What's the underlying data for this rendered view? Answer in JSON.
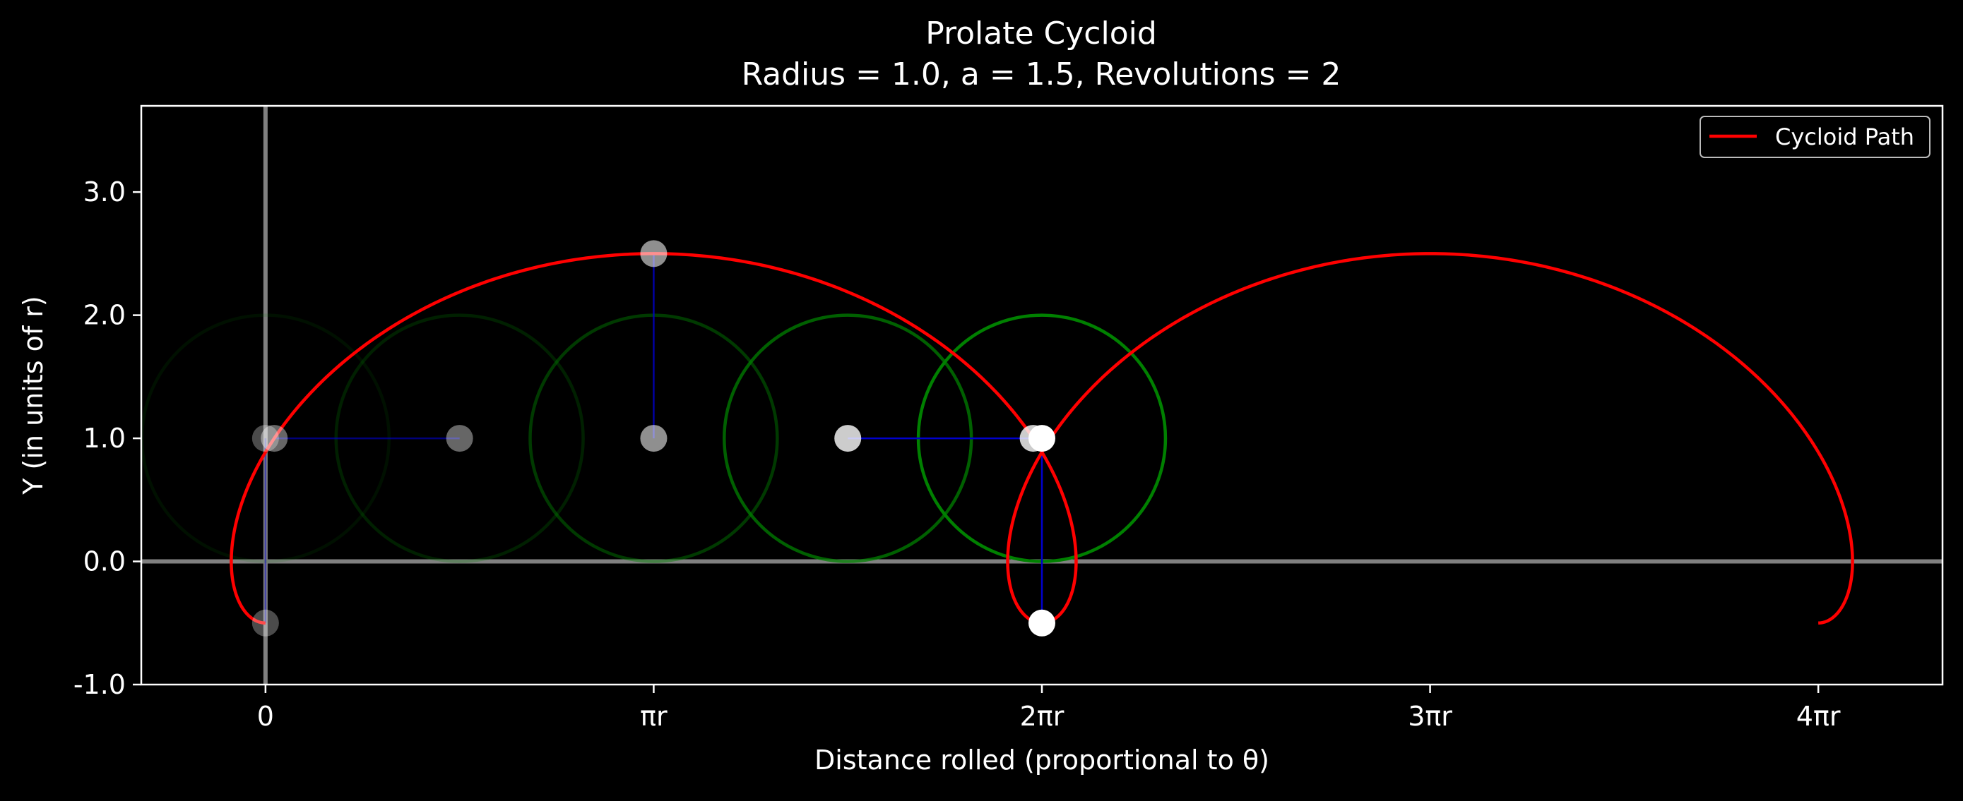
{
  "chart_data": {
    "type": "line",
    "title": "Prolate Cycloid",
    "subtitle": "Radius = 1.0, a = 1.5, Revolutions = 2",
    "xlabel": "Distance rolled (proportional to θ)",
    "ylabel": "Y (in units of r)",
    "radius": 1.0,
    "a": 1.5,
    "revolutions": 2,
    "xlim": [
      -0.32,
      4.32
    ],
    "ylim": [
      -1.0,
      3.7
    ],
    "x_unit": "πr",
    "x_ticks": [
      {
        "value": 0,
        "label": "0"
      },
      {
        "value": 1,
        "label": "πr"
      },
      {
        "value": 2,
        "label": "2πr"
      },
      {
        "value": 3,
        "label": "3πr"
      },
      {
        "value": 4,
        "label": "4πr"
      }
    ],
    "y_ticks": [
      {
        "value": -1.0,
        "label": "-1.0"
      },
      {
        "value": 0.0,
        "label": "0.0"
      },
      {
        "value": 1.0,
        "label": "1.0"
      },
      {
        "value": 2.0,
        "label": "2.0"
      },
      {
        "value": 3.0,
        "label": "3.0"
      }
    ],
    "legend": {
      "position": "upper right",
      "entries": [
        {
          "name": "Cycloid Path",
          "color": "#ff0000"
        }
      ]
    },
    "series": [
      {
        "name": "Cycloid Path",
        "color": "#ff0000",
        "theta_range_revolutions": [
          0,
          2
        ]
      }
    ],
    "rolling_circle_snapshots": [
      {
        "center_x": 0.0,
        "theta_fraction": 0.0,
        "opacity": 0.12
      },
      {
        "center_x": 0.5,
        "theta_fraction": 0.25,
        "opacity": 0.25
      },
      {
        "center_x": 1.0,
        "theta_fraction": 0.5,
        "opacity": 0.45
      },
      {
        "center_x": 1.5,
        "theta_fraction": 0.75,
        "opacity": 0.75
      },
      {
        "center_x": 2.0,
        "theta_fraction": 1.0,
        "opacity": 1.0
      }
    ],
    "colors": {
      "background": "#000000",
      "path": "#ff0000",
      "rolling_circle": "#008000",
      "radius_line": "#0000cc",
      "points": "#ffffff",
      "axes_lines": "#808080",
      "frame": "#ffffff"
    }
  }
}
